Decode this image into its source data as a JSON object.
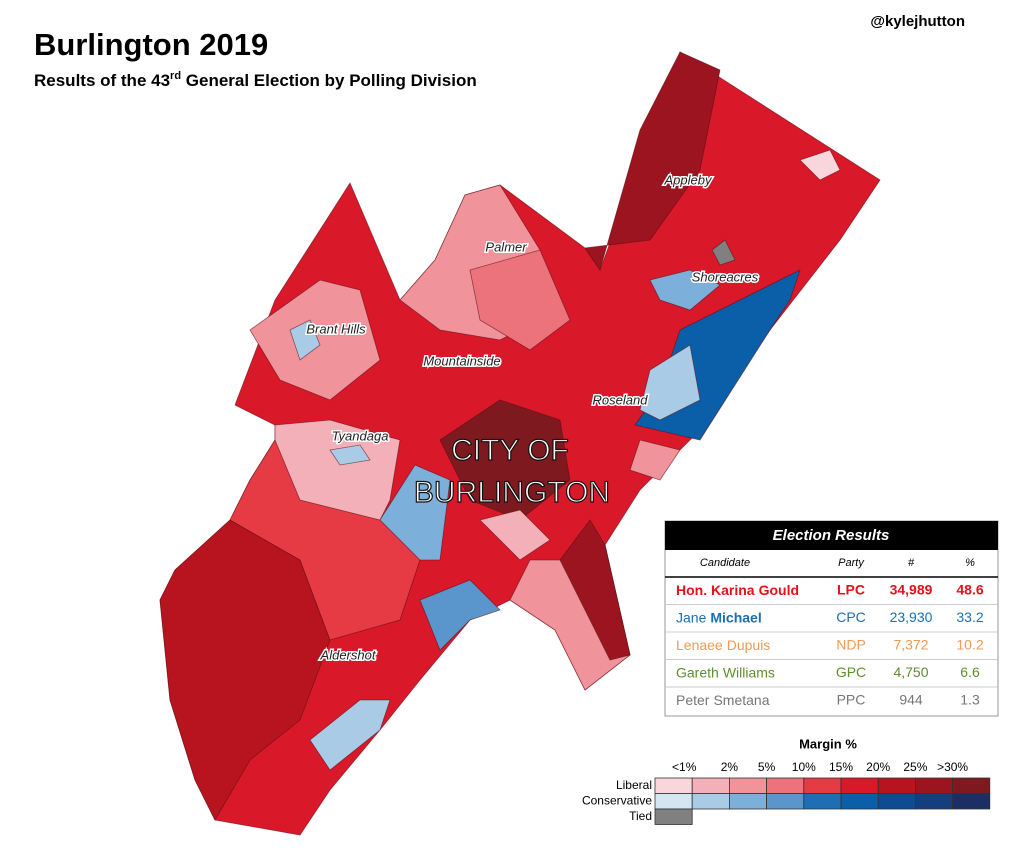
{
  "header": {
    "title": "Burlington 2019",
    "subtitle": {
      "before": "Results of the 43",
      "superscript": "rd",
      "after": " General Election by Polling Division"
    },
    "credit": "@kylejhutton"
  },
  "map": {
    "place_labels": [
      "Appleby",
      "Palmer",
      "Shoreacres",
      "Brant Hills",
      "Mountainside",
      "Roseland",
      "Tyandaga",
      "Aldershot"
    ],
    "city_label": [
      "CITY OF",
      "BURLINGTON"
    ]
  },
  "results_table": {
    "title": "Election Results",
    "columns": [
      "Candidate",
      "Party",
      "#",
      "%"
    ],
    "rows": [
      {
        "given": "Hon. Karina",
        "surname": "Gould",
        "party": "LPC",
        "votes": "34,989",
        "percent": "48.6",
        "color": "#e8101c"
      },
      {
        "given": "Jane",
        "surname": "Michael",
        "party": "CPC",
        "votes": "23,930",
        "percent": "33.2",
        "color": "#1a6fb4"
      },
      {
        "given": "Lenaee",
        "surname": "Dupuis",
        "party": "NDP",
        "votes": "7,372",
        "percent": "10.2",
        "color": "#f09a55"
      },
      {
        "given": "Gareth",
        "surname": "Williams",
        "party": "GPC",
        "votes": "4,750",
        "percent": "6.6",
        "color": "#5e8f2e"
      },
      {
        "given": "Peter",
        "surname": "Smetana",
        "party": "PPC",
        "votes": "944",
        "percent": "1.3",
        "color": "#777777"
      }
    ]
  },
  "legend": {
    "title": "Margin %",
    "thresholds": [
      "<1%",
      "2%",
      "5%",
      "10%",
      "15%",
      "20%",
      "25%",
      ">30%"
    ],
    "rows": [
      {
        "label": "Liberal",
        "colors": [
          "#f9d6dc",
          "#f4b0b8",
          "#f0939b",
          "#ec737b",
          "#e63a44",
          "#d9182a",
          "#b8141f",
          "#9c1420",
          "#7e1a1f"
        ]
      },
      {
        "label": "Conservative",
        "colors": [
          "#d5e6f3",
          "#a9cbe6",
          "#7cb0da",
          "#5a96cb",
          "#1f6db3",
          "#0b5ea8",
          "#0d4c91",
          "#143f7c",
          "#1b2f66"
        ]
      },
      {
        "label": "Tied",
        "colors": [
          "#808080"
        ]
      }
    ]
  }
}
